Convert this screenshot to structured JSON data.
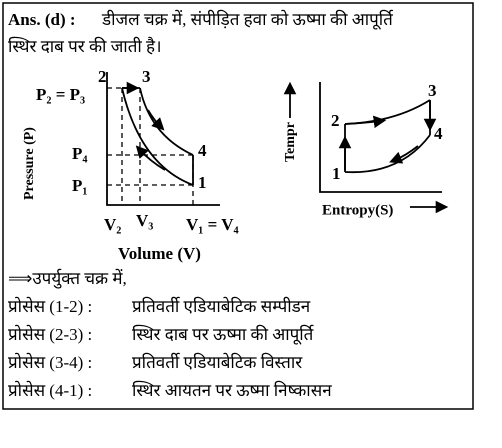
{
  "answer": {
    "label": "Ans. (d) :",
    "lines": [
      "डीजल चक्र में, संपीड़ित हवा को ऊष्मा की आपूर्ति",
      "स्थिर दाब पर की जाती है।"
    ]
  },
  "pv_diagram": {
    "y_axis_label": "Pressure (P)",
    "x_axis_label": "Volume (V)",
    "pressure_labels": [
      "P₂ = P₃",
      "P₄",
      "P₁"
    ],
    "volume_labels": [
      "V₂",
      "V₃",
      "V₁ = V₄"
    ],
    "points": [
      "2",
      "3",
      "4",
      "1"
    ]
  },
  "ts_diagram": {
    "y_axis_label": "Tempr",
    "x_axis_label": "Entropy(S)",
    "points": [
      "1",
      "2",
      "3",
      "4"
    ]
  },
  "conclusion": {
    "intro": "⟹उपर्युक्त चक्र में,",
    "processes": [
      {
        "name": "प्रोसेस (1-2) :",
        "description": "प्रतिवर्ती एडियाबेटिक सम्पीडन"
      },
      {
        "name": "प्रोसेस (2-3) :",
        "description": "स्थिर दाब पर ऊष्मा की आपूर्ति"
      },
      {
        "name": "प्रोसेस (3-4) :",
        "description": "प्रतिवर्ती एडियाबेटिक विस्तार"
      },
      {
        "name": "प्रोसेस (4-1) :",
        "description": "स्थिर आयतन पर ऊष्मा निष्कासन"
      }
    ]
  }
}
